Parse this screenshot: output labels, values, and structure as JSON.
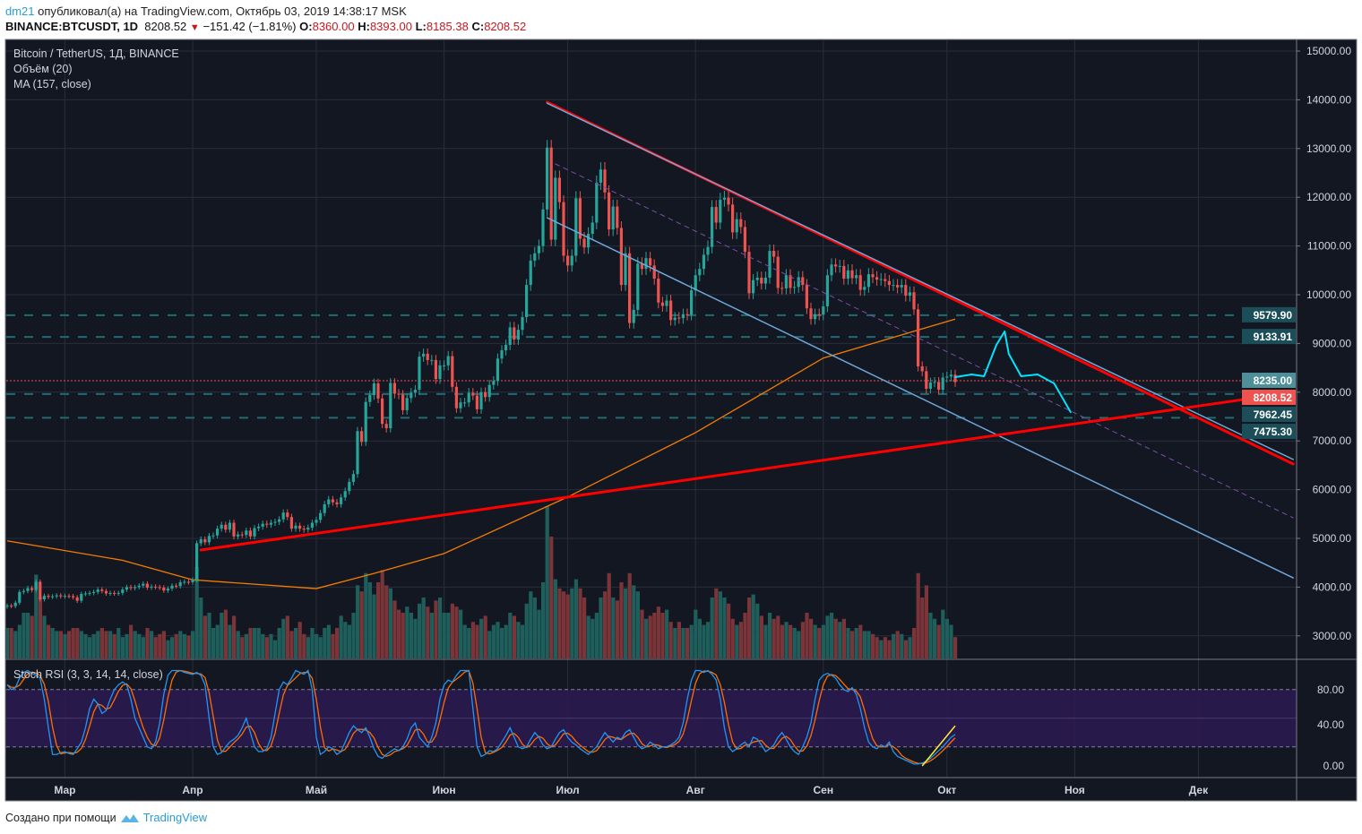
{
  "header": {
    "user": "dm21",
    "published_text": "опубликовал(а) на TradingView.com, Октябрь 03, 2019 14:38:17 MSK",
    "symbol": "BINANCE:BTCUSDT, 1D",
    "last": "8208.52",
    "direction_icon": "triangle-down",
    "change": "−151.42 (−1.81%)",
    "o_label": "O:",
    "o": "8360.00",
    "h_label": "H:",
    "h": "8393.00",
    "l_label": "L:",
    "l": "8185.38",
    "c_label": "C:",
    "c": "8208.52"
  },
  "legend": {
    "title": "Bitcoin / TetherUS, 1Д, BINANCE",
    "volume": "Объём (20)",
    "ma": "MA (157, close)",
    "stoch": "Stoch RSI (3, 3, 14, 14, close)"
  },
  "footer": {
    "text": "Создано при помощи",
    "brand": "TradingView"
  },
  "colors": {
    "background": "#131722",
    "grid": "#2a2e39",
    "up": "#26a69a",
    "down": "#ef5350",
    "volume_up": "#1f5f5b",
    "volume_down": "#7b3438",
    "ma": "#f57c00",
    "stoch_k": "#2196f3",
    "stoch_d": "#ff6d00",
    "stoch_band": "#2a1a4f",
    "level": "#1e5a63",
    "resistance": "#ff0000",
    "channel": "#6fa8dc",
    "projection": "#00e5ff"
  },
  "chart_data": {
    "type": "candlestick",
    "title": "Bitcoin / TetherUS, 1Д, BINANCE",
    "first_date": "2019-02-15",
    "price_axis": {
      "ylim": [
        3000,
        15000
      ],
      "ticks": [
        "3000.00",
        "4000.00",
        "5000.00",
        "6000.00",
        "7000.00",
        "8000.00",
        "9000.00",
        "10000.00",
        "11000.00",
        "12000.00",
        "13000.00",
        "14000.00",
        "15000.00"
      ]
    },
    "time_axis": {
      "labels": [
        {
          "text": "Мар",
          "date": "2019-03-01"
        },
        {
          "text": "Апр",
          "date": "2019-04-01"
        },
        {
          "text": "Май",
          "date": "2019-05-01"
        },
        {
          "text": "Июн",
          "date": "2019-06-01"
        },
        {
          "text": "Июл",
          "date": "2019-07-01"
        },
        {
          "text": "Авг",
          "date": "2019-08-01"
        },
        {
          "text": "Сен",
          "date": "2019-09-01"
        },
        {
          "text": "Окт",
          "date": "2019-10-01"
        },
        {
          "text": "Ноя",
          "date": "2019-11-01"
        },
        {
          "text": "Дек",
          "date": "2019-12-01"
        }
      ]
    },
    "closes": [
      3620,
      3610,
      3680,
      3900,
      3920,
      3980,
      3940,
      4110,
      3750,
      3820,
      3800,
      3810,
      3830,
      3810,
      3820,
      3815,
      3790,
      3720,
      3860,
      3870,
      3880,
      3900,
      3950,
      3920,
      3870,
      3880,
      3870,
      3880,
      3950,
      4000,
      3980,
      4000,
      4030,
      4070,
      3990,
      4010,
      4000,
      3990,
      3930,
      3970,
      4030,
      4020,
      4100,
      4110,
      4100,
      4150,
      4900,
      4980,
      4920,
      5050,
      5060,
      5200,
      5280,
      5180,
      5320,
      5040,
      5080,
      5070,
      5160,
      5040,
      5210,
      5240,
      5300,
      5280,
      5320,
      5340,
      5390,
      5530,
      5440,
      5200,
      5260,
      5200,
      5180,
      5220,
      5320,
      5380,
      5520,
      5700,
      5800,
      5740,
      5700,
      5840,
      5970,
      6160,
      6320,
      7200,
      6980,
      7800,
      7940,
      8180,
      7870,
      7350,
      7260,
      8190,
      7970,
      7950,
      7630,
      7880,
      7990,
      8050,
      8730,
      8790,
      8660,
      8660,
      8270,
      8550,
      8550,
      8740,
      8110,
      7670,
      7790,
      7790,
      7990,
      7930,
      7650,
      8000,
      7900,
      8150,
      8230,
      8690,
      8860,
      8970,
      9330,
      9080,
      9280,
      9540,
      10200,
      10700,
      10850,
      11000,
      11750,
      13020,
      11130,
      12400,
      11900,
      10800,
      10600,
      10800,
      11980,
      11150,
      10970,
      11250,
      11480,
      12300,
      12570,
      12100,
      11340,
      11810,
      11370,
      10200,
      10850,
      9420,
      9690,
      10640,
      10530,
      10750,
      10600,
      10330,
      9840,
      9770,
      9880,
      9480,
      9530,
      9520,
      9600,
      9590,
      10090,
      10400,
      10530,
      10820,
      10980,
      11800,
      11480,
      11950,
      11990,
      11850,
      11280,
      11550,
      11390,
      10880,
      10030,
      10300,
      10350,
      10230,
      10350,
      10900,
      10780,
      10140,
      10130,
      10400,
      10140,
      10160,
      10360,
      10200,
      9720,
      9500,
      9600,
      9590,
      9760,
      10400,
      10620,
      10580,
      10590,
      10330,
      10500,
      10340,
      10400,
      10100,
      10160,
      10420,
      10360,
      10310,
      10320,
      10280,
      10200,
      10200,
      10150,
      10200,
      9980,
      10050,
      9700,
      8530,
      8430,
      8070,
      8200,
      8210,
      8050,
      8300,
      8320,
      8360,
      8208.52
    ],
    "first_open": 3600,
    "volume_relative": [
      20,
      20,
      18,
      22,
      30,
      30,
      28,
      55,
      40,
      28,
      22,
      20,
      18,
      18,
      16,
      18,
      20,
      20,
      18,
      16,
      14,
      16,
      18,
      20,
      18,
      18,
      16,
      20,
      14,
      16,
      22,
      18,
      16,
      14,
      20,
      18,
      14,
      16,
      18,
      12,
      14,
      16,
      18,
      16,
      15,
      18,
      60,
      40,
      28,
      30,
      20,
      22,
      30,
      32,
      22,
      28,
      18,
      14,
      16,
      20,
      20,
      20,
      16,
      14,
      16,
      12,
      20,
      26,
      28,
      18,
      20,
      24,
      16,
      14,
      20,
      16,
      14,
      20,
      22,
      16,
      20,
      28,
      24,
      22,
      30,
      48,
      44,
      56,
      50,
      42,
      50,
      58,
      48,
      46,
      38,
      32,
      30,
      34,
      30,
      26,
      36,
      40,
      34,
      30,
      38,
      40,
      30,
      30,
      36,
      34,
      32,
      22,
      20,
      24,
      22,
      26,
      28,
      18,
      22,
      24,
      20,
      22,
      30,
      28,
      24,
      22,
      36,
      44,
      40,
      32,
      50,
      100,
      80,
      52,
      46,
      44,
      42,
      46,
      52,
      46,
      40,
      28,
      26,
      30,
      40,
      44,
      56,
      40,
      38,
      50,
      46,
      56,
      48,
      44,
      32,
      26,
      28,
      30,
      34,
      30,
      32,
      24,
      20,
      24,
      20,
      20,
      22,
      32,
      26,
      22,
      24,
      40,
      46,
      44,
      40,
      36,
      26,
      22,
      24,
      30,
      40,
      42,
      36,
      28,
      22,
      30,
      26,
      28,
      22,
      24,
      22,
      20,
      18,
      24,
      30,
      26,
      22,
      20,
      22,
      28,
      30,
      26,
      24,
      26,
      20,
      18,
      20,
      22,
      18,
      18,
      16,
      14,
      12,
      14,
      12,
      16,
      18,
      16,
      12,
      14,
      20,
      56,
      40,
      48,
      30,
      26,
      22,
      32,
      26,
      22,
      14
    ],
    "ma157": [
      {
        "date": "2019-02-15",
        "value": 4950
      },
      {
        "date": "2019-03-15",
        "value": 4550
      },
      {
        "date": "2019-04-01",
        "value": 4150
      },
      {
        "date": "2019-05-01",
        "value": 3970
      },
      {
        "date": "2019-05-15",
        "value": 4280
      },
      {
        "date": "2019-06-01",
        "value": 4690
      },
      {
        "date": "2019-07-01",
        "value": 5850
      },
      {
        "date": "2019-08-01",
        "value": 7170
      },
      {
        "date": "2019-09-01",
        "value": 8700
      },
      {
        "date": "2019-10-03",
        "value": 9500
      }
    ],
    "levels": [
      {
        "label": "9579.90",
        "value": 9579.9,
        "style": "dashed"
      },
      {
        "label": "9133.91",
        "value": 9133.91,
        "style": "dashed"
      },
      {
        "label": "8235.00",
        "value": 8235.0,
        "style": "dotted-red"
      },
      {
        "label": "8208.52",
        "value": 8208.52,
        "style": "current"
      },
      {
        "label": "7962.45",
        "value": 7962.45,
        "style": "dashed"
      },
      {
        "label": "7475.30",
        "value": 7475.3,
        "style": "dashed"
      }
    ],
    "drawings": [
      {
        "name": "resistance-trendline",
        "color": "#ff0000",
        "width": 3,
        "points": [
          [
            "2019-06-26",
            13950
          ],
          [
            "2019-12-24",
            6526
          ]
        ]
      },
      {
        "name": "channel-upper-line",
        "color": "#6fa8dc",
        "width": 1.5,
        "points": [
          [
            "2019-06-26",
            13930
          ],
          [
            "2019-12-24",
            6620
          ]
        ]
      },
      {
        "name": "channel-lower-line",
        "color": "#6fa8dc",
        "width": 1.5,
        "points": [
          [
            "2019-06-26",
            11580
          ],
          [
            "2019-12-24",
            4190
          ]
        ]
      },
      {
        "name": "channel-midline",
        "color": "#7b4fa8",
        "width": 1,
        "dash": "5,5",
        "points": [
          [
            "2019-06-28",
            12684
          ],
          [
            "2019-12-24",
            5423
          ]
        ]
      },
      {
        "name": "support-trendline",
        "color": "#ff0000",
        "width": 3,
        "points": [
          [
            "2019-04-03",
            4761
          ],
          [
            "2019-12-24",
            7996
          ]
        ]
      },
      {
        "name": "projection-path",
        "color": "#00e5ff",
        "width": 2,
        "points": [
          [
            "2019-10-03",
            8309
          ],
          [
            "2019-10-07",
            8364
          ],
          [
            "2019-10-10",
            8327
          ],
          [
            "2019-10-13",
            8971
          ],
          [
            "2019-10-15",
            9246
          ],
          [
            "2019-10-16",
            8787
          ],
          [
            "2019-10-19",
            8327
          ],
          [
            "2019-10-23",
            8364
          ],
          [
            "2019-10-27",
            8180
          ],
          [
            "2019-10-31",
            7592
          ]
        ]
      }
    ],
    "stoch_rsi": {
      "ylim": [
        -10,
        100
      ],
      "ticks": [
        "80.00",
        "40.00",
        "0.00"
      ],
      "band": [
        20,
        80
      ],
      "k": [
        85,
        80,
        82,
        92,
        98,
        100,
        97,
        95,
        92,
        70,
        40,
        12,
        12,
        14,
        15,
        13,
        12,
        18,
        25,
        40,
        60,
        70,
        65,
        55,
        58,
        70,
        80,
        85,
        88,
        85,
        70,
        50,
        40,
        30,
        20,
        18,
        25,
        45,
        75,
        95,
        100,
        100,
        100,
        98,
        97,
        96,
        98,
        95,
        85,
        50,
        20,
        12,
        14,
        20,
        25,
        28,
        32,
        40,
        50,
        35,
        20,
        15,
        15,
        18,
        30,
        55,
        80,
        88,
        85,
        92,
        100,
        98,
        96,
        100,
        80,
        30,
        12,
        15,
        20,
        18,
        12,
        15,
        25,
        35,
        42,
        38,
        35,
        40,
        30,
        18,
        10,
        8,
        12,
        15,
        18,
        16,
        20,
        28,
        40,
        45,
        30,
        25,
        20,
        30,
        45,
        70,
        85,
        90,
        88,
        95,
        100,
        100,
        100,
        60,
        20,
        10,
        12,
        16,
        15,
        18,
        25,
        32,
        40,
        30,
        20,
        18,
        20,
        28,
        35,
        30,
        22,
        18,
        20,
        28,
        35,
        38,
        30,
        25,
        22,
        18,
        15,
        12,
        16,
        20,
        28,
        35,
        30,
        25,
        30,
        28,
        35,
        38,
        30,
        22,
        18,
        20,
        25,
        22,
        18,
        20,
        20,
        22,
        25,
        30,
        45,
        70,
        90,
        100,
        100,
        98,
        100,
        96,
        90,
        70,
        40,
        20,
        15,
        18,
        22,
        25,
        20,
        30,
        28,
        22,
        15,
        18,
        22,
        30,
        35,
        28,
        20,
        15,
        12,
        20,
        30,
        45,
        70,
        90,
        95,
        97,
        95,
        92,
        85,
        80,
        78,
        82,
        75,
        60,
        40,
        25,
        20,
        18,
        22,
        20,
        25,
        15,
        10,
        8,
        6,
        4,
        2,
        2,
        3,
        5,
        8,
        12,
        16,
        20,
        25,
        30,
        33
      ],
      "d_smoothing": 3,
      "trendline": {
        "color": "#ffeb3b",
        "points": [
          [
            "2019-09-25",
            0
          ],
          [
            "2019-10-03",
            42
          ]
        ]
      }
    }
  }
}
